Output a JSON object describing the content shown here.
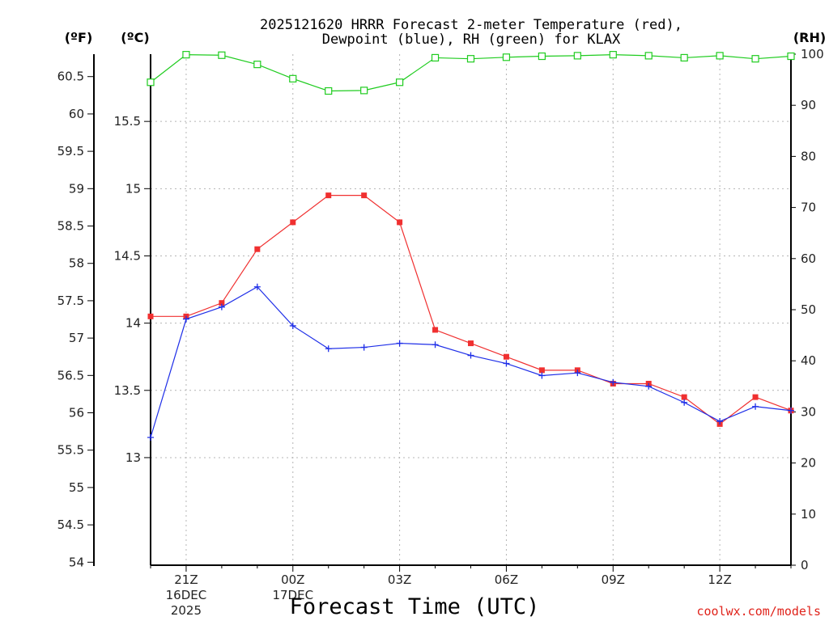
{
  "chart_data": {
    "type": "line",
    "title_line1": "2025121620 HRRR Forecast 2-meter Temperature (red),",
    "title_line2": "Dewpoint (blue), RH (green) for KLAX",
    "xlabel": "Forecast Time (UTC)",
    "credit": "coolwx.com/models",
    "units": {
      "fahrenheit": "(ºF)",
      "celsius": "(ºC)",
      "rh": "(RH)"
    },
    "x_hours": [
      20,
      21,
      22,
      23,
      24,
      25,
      26,
      27,
      28,
      29,
      30,
      31,
      32,
      33,
      34,
      35,
      36,
      37,
      38
    ],
    "x_ticks": [
      {
        "hour": 21,
        "lines": [
          "21Z",
          "16DEC",
          "2025"
        ]
      },
      {
        "hour": 24,
        "lines": [
          "00Z",
          "17DEC"
        ]
      },
      {
        "hour": 27,
        "lines": [
          "03Z"
        ]
      },
      {
        "hour": 30,
        "lines": [
          "06Z"
        ]
      },
      {
        "hour": 33,
        "lines": [
          "09Z"
        ]
      },
      {
        "hour": 36,
        "lines": [
          "12Z"
        ]
      }
    ],
    "xlim": [
      20,
      38
    ],
    "celsius_axis": {
      "ylim": [
        12.2,
        16.0
      ],
      "ticks": [
        13,
        13.5,
        14,
        14.5,
        15,
        15.5
      ],
      "labels": [
        "13",
        "13.5",
        "14",
        "14.5",
        "15",
        "15.5"
      ]
    },
    "fahrenheit_axis": {
      "ticks": [
        54,
        54.5,
        55,
        55.5,
        56,
        56.5,
        57,
        57.5,
        58,
        58.5,
        59,
        59.5,
        60,
        60.5
      ],
      "labels": [
        "54",
        "54.5",
        "55",
        "55.5",
        "56",
        "56.5",
        "57",
        "57.5",
        "58",
        "58.5",
        "59",
        "59.5",
        "60",
        "60.5"
      ]
    },
    "rh_axis": {
      "ylim": [
        0,
        100
      ],
      "ticks": [
        0,
        10,
        20,
        30,
        40,
        50,
        60,
        70,
        80,
        90,
        100
      ],
      "labels": [
        "0",
        "10",
        "20",
        "30",
        "40",
        "50",
        "60",
        "70",
        "80",
        "90",
        "100"
      ]
    },
    "series": [
      {
        "name": "Temperature",
        "color": "#f03030",
        "marker": "square-filled",
        "axis": "celsius",
        "values": [
          14.05,
          14.05,
          14.15,
          14.55,
          14.75,
          14.95,
          14.95,
          14.75,
          13.95,
          13.85,
          13.75,
          13.65,
          13.65,
          13.55,
          13.55,
          13.45,
          13.25,
          13.45,
          13.35
        ]
      },
      {
        "name": "Dewpoint",
        "color": "#1f2fe8",
        "marker": "plus",
        "axis": "celsius",
        "values": [
          13.15,
          14.03,
          14.12,
          14.27,
          13.98,
          13.81,
          13.82,
          13.85,
          13.84,
          13.76,
          13.7,
          13.61,
          13.63,
          13.56,
          13.53,
          13.41,
          13.27,
          13.38,
          13.35
        ]
      },
      {
        "name": "RH",
        "color": "#1fcc1f",
        "marker": "square-open",
        "axis": "rh",
        "values": [
          94.5,
          99.9,
          99.8,
          98.0,
          95.2,
          92.8,
          92.9,
          94.5,
          99.3,
          99.1,
          99.4,
          99.6,
          99.7,
          99.9,
          99.7,
          99.3,
          99.7,
          99.1,
          99.6
        ]
      }
    ]
  }
}
